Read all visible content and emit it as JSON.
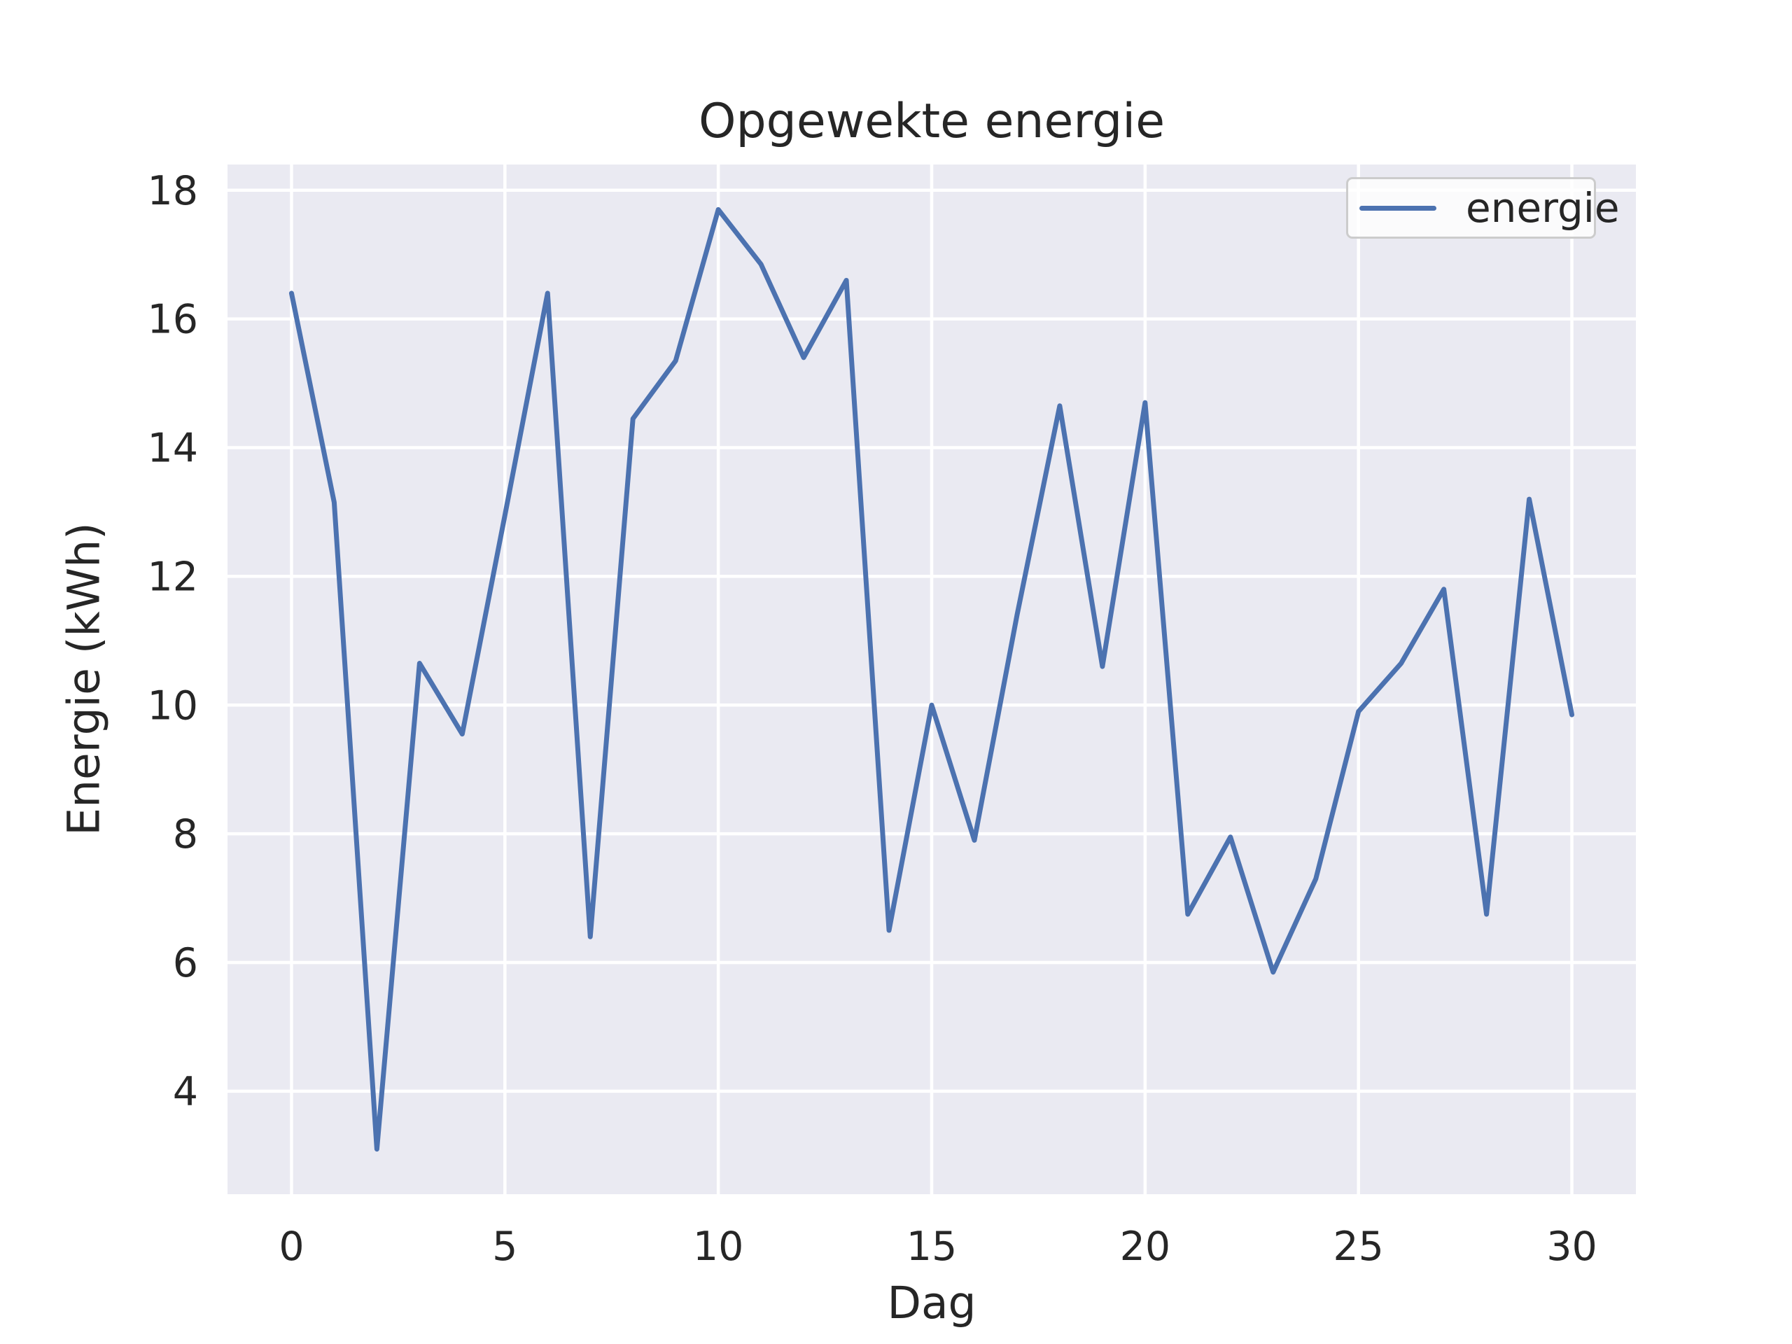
{
  "chart_data": {
    "type": "line",
    "title": "Opgewekte energie",
    "xlabel": "Dag",
    "ylabel": "Energie (kWh)",
    "x": [
      0,
      1,
      2,
      3,
      4,
      5,
      6,
      7,
      8,
      9,
      10,
      11,
      12,
      13,
      14,
      15,
      16,
      17,
      18,
      19,
      20,
      21,
      22,
      23,
      24,
      25,
      26,
      27,
      28,
      29,
      30
    ],
    "series": [
      {
        "name": "energie",
        "values": [
          16.4,
          13.15,
          3.1,
          10.65,
          9.55,
          12.95,
          16.4,
          6.4,
          14.45,
          15.35,
          17.7,
          16.85,
          15.4,
          16.6,
          6.5,
          10.0,
          7.9,
          11.4,
          14.65,
          10.6,
          14.7,
          6.75,
          7.95,
          5.85,
          7.3,
          9.9,
          10.65,
          11.8,
          6.75,
          13.2,
          9.85
        ]
      }
    ],
    "xticks": [
      "0",
      "5",
      "10",
      "15",
      "20",
      "25",
      "30"
    ],
    "xtick_values": [
      0,
      5,
      10,
      15,
      20,
      25,
      30
    ],
    "yticks": [
      "4",
      "6",
      "8",
      "10",
      "12",
      "14",
      "16",
      "18"
    ],
    "ytick_values": [
      4,
      6,
      8,
      10,
      12,
      14,
      16,
      18
    ],
    "xlim": [
      -1.5,
      31.5
    ],
    "ylim": [
      2.4,
      18.4
    ],
    "grid": true,
    "legend": {
      "label": "energie",
      "position": "upper right"
    },
    "colors": {
      "line": "#4c72b0",
      "axes_bg": "#eaeaf2",
      "grid": "#ffffff",
      "text": "#262626",
      "legend_border": "#cccccc"
    }
  }
}
